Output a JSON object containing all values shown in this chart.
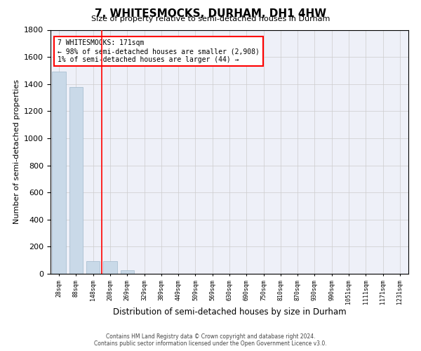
{
  "title": "7, WHITESMOCKS, DURHAM, DH1 4HW",
  "subtitle": "Size of property relative to semi-detached houses in Durham",
  "xlabel": "Distribution of semi-detached houses by size in Durham",
  "ylabel": "Number of semi-detached properties",
  "footer_line1": "Contains HM Land Registry data © Crown copyright and database right 2024.",
  "footer_line2": "Contains public sector information licensed under the Open Government Licence v3.0.",
  "annotation_title": "7 WHITESMOCKS: 171sqm",
  "annotation_line1": "← 98% of semi-detached houses are smaller (2,908)",
  "annotation_line2": "1% of semi-detached houses are larger (44) →",
  "bar_color": "#c9d9e8",
  "bar_edge_color": "#a0b8cc",
  "vline_color": "red",
  "grid_color": "#cccccc",
  "background_color": "#eef0f8",
  "categories": [
    "28sqm",
    "88sqm",
    "148sqm",
    "208sqm",
    "269sqm",
    "329sqm",
    "389sqm",
    "449sqm",
    "509sqm",
    "569sqm",
    "630sqm",
    "690sqm",
    "750sqm",
    "810sqm",
    "870sqm",
    "930sqm",
    "990sqm",
    "1051sqm",
    "1111sqm",
    "1171sqm",
    "1231sqm"
  ],
  "values": [
    1490,
    1380,
    95,
    95,
    27,
    0,
    0,
    0,
    0,
    0,
    0,
    0,
    0,
    0,
    0,
    0,
    0,
    0,
    0,
    0,
    0
  ],
  "ylim": [
    0,
    1800
  ],
  "yticks": [
    0,
    200,
    400,
    600,
    800,
    1000,
    1200,
    1400,
    1600,
    1800
  ],
  "vline_x": 2.5
}
